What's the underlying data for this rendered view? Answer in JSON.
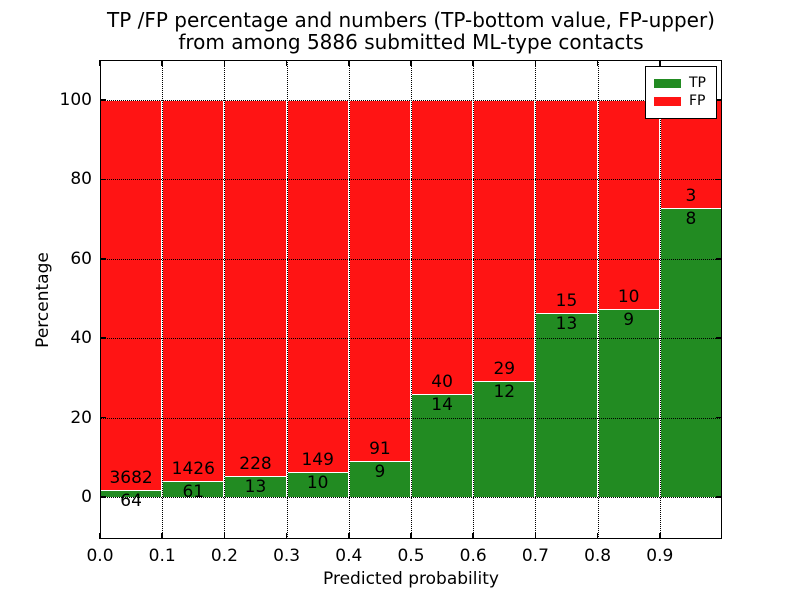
{
  "chart_data": {
    "type": "bar",
    "stacked": true,
    "units": "percent",
    "title": "TP /FP percentage and numbers (TP-bottom value, FP-upper)",
    "subtitle": "from among 5886 submitted ML-type contacts",
    "xlabel": "Predicted probability",
    "ylabel": "Percentage",
    "total_submitted": 5886,
    "bins": [
      {
        "range": "0.0-0.1",
        "tp": 64,
        "fp": 3682
      },
      {
        "range": "0.1-0.2",
        "tp": 61,
        "fp": 1426
      },
      {
        "range": "0.2-0.3",
        "tp": 13,
        "fp": 228
      },
      {
        "range": "0.3-0.4",
        "tp": 10,
        "fp": 149
      },
      {
        "range": "0.4-0.5",
        "tp": 9,
        "fp": 91
      },
      {
        "range": "0.5-0.6",
        "tp": 14,
        "fp": 40
      },
      {
        "range": "0.6-0.7",
        "tp": 12,
        "fp": 29
      },
      {
        "range": "0.7-0.8",
        "tp": 13,
        "fp": 15
      },
      {
        "range": "0.8-0.9",
        "tp": 9,
        "fp": 10
      },
      {
        "range": "0.9-1.0",
        "tp": 8,
        "fp": 3
      }
    ],
    "xticks": [
      0.0,
      0.1,
      0.2,
      0.3,
      0.4,
      0.5,
      0.6,
      0.7,
      0.8,
      0.9
    ],
    "xtick_labels": [
      "0.0",
      "0.1",
      "0.2",
      "0.3",
      "0.4",
      "0.5",
      "0.6",
      "0.7",
      "0.8",
      "0.9"
    ],
    "yticks": [
      0,
      20,
      40,
      60,
      80,
      100
    ],
    "xlim": [
      0,
      1
    ],
    "ylim": [
      -10.6,
      110.1
    ],
    "grid": {
      "style": "dotted",
      "color": "#000000"
    },
    "legend": {
      "position": "upper right",
      "entries": [
        {
          "label": "TP",
          "color": "#228b22"
        },
        {
          "label": "FP",
          "color": "#ff1414"
        }
      ]
    },
    "colors": {
      "tp": "#228b22",
      "fp": "#ff1414",
      "bar_edge": "#ffffff",
      "axis": "#000000",
      "background": "#ffffff"
    }
  }
}
